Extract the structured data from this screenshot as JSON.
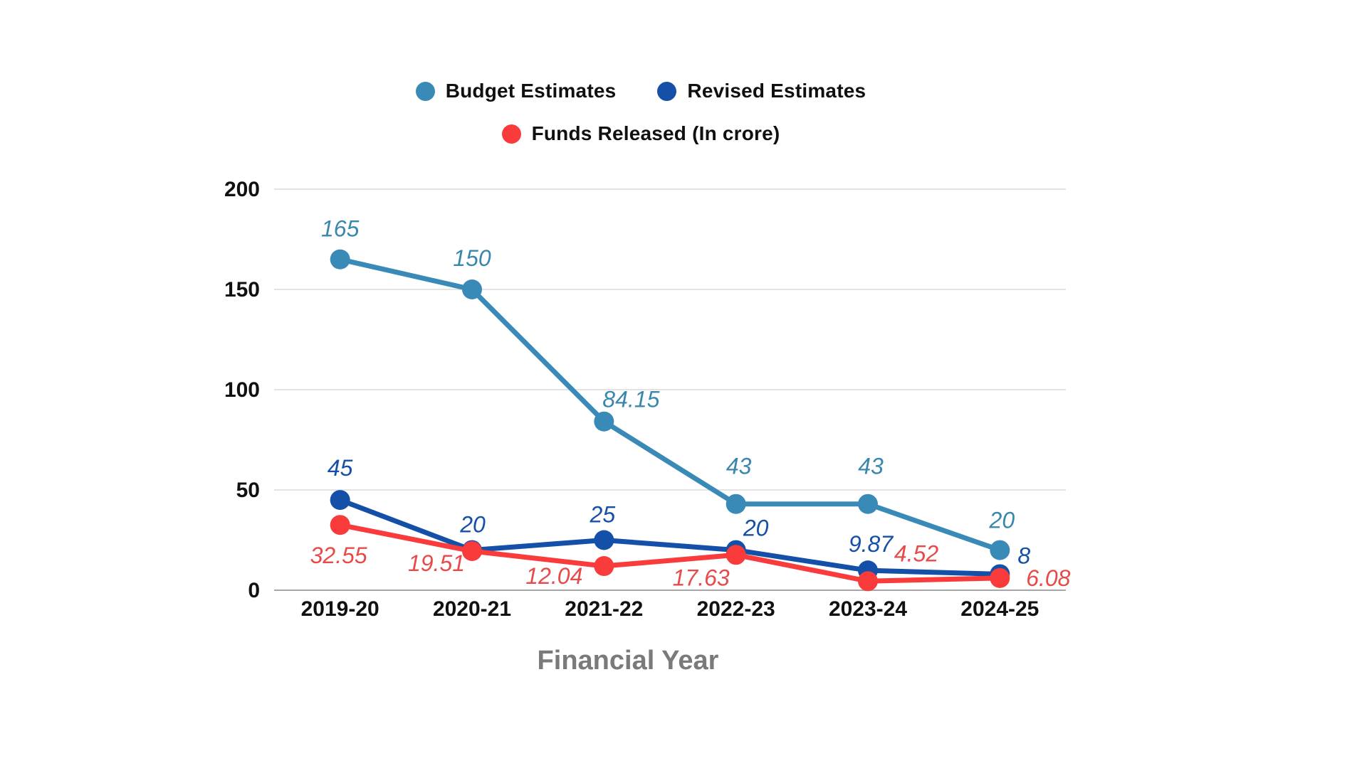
{
  "chart_data": {
    "type": "line",
    "title": "",
    "xlabel": "Financial Year",
    "ylabel": "",
    "ylim": [
      0,
      200
    ],
    "yticks": [
      0,
      50,
      100,
      150,
      200
    ],
    "grid": "horizontal",
    "legend_position": "top",
    "categories": [
      "2019-20",
      "2020-21",
      "2021-22",
      "2022-23",
      "2023-24",
      "2024-25"
    ],
    "series": [
      {
        "name": "Budget Estimates",
        "color": "#3a8ab8",
        "label_color": "#3a87ad",
        "values": [
          165,
          150,
          84.15,
          43,
          43,
          20
        ],
        "label_offsets": [
          [
            0,
            -32
          ],
          [
            0,
            -33
          ],
          [
            38,
            -20
          ],
          [
            4,
            -42
          ],
          [
            4,
            -42
          ],
          [
            3,
            -31
          ]
        ]
      },
      {
        "name": "Revised Estimates",
        "color": "#1450a8",
        "label_color": "#1450a8",
        "values": [
          45,
          20,
          25,
          20,
          9.87,
          8
        ],
        "label_offsets": [
          [
            0,
            -34
          ],
          [
            1,
            -25
          ],
          [
            -2,
            -25
          ],
          [
            28,
            -20
          ],
          [
            4,
            -26
          ],
          [
            34,
            -15
          ]
        ]
      },
      {
        "name": "Funds Released (In crore)",
        "color": "#f93b3b",
        "label_color": "#e84a4a",
        "values": [
          32.55,
          19.51,
          12.04,
          17.63,
          4.52,
          6.08
        ],
        "label_offsets": [
          [
            -2,
            54
          ],
          [
            -50,
            28
          ],
          [
            -70,
            25
          ],
          [
            -49,
            43
          ],
          [
            68,
            -28
          ],
          [
            68,
            11
          ]
        ]
      }
    ],
    "axis_title_color": "#7a7a7a",
    "tick_label_color": "#111111",
    "gridline_color": "#dadada",
    "baseline_color": "#a6a6a6"
  }
}
